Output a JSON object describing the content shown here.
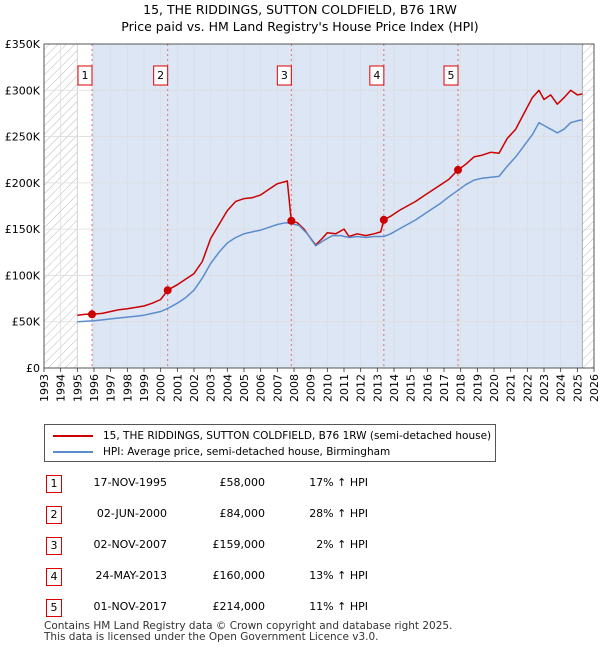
{
  "header": {
    "title_line1": "15, THE RIDDINGS, SUTTON COLDFIELD, B76 1RW",
    "title_line2": "Price paid vs. HM Land Registry's House Price Index (HPI)"
  },
  "colors": {
    "property": "#cc0000",
    "hpi": "#5b8ccc",
    "shade": "#dce6f5",
    "hatch": "#bbbbbb",
    "grid": "#dddddd",
    "vline": "#e07070"
  },
  "chart_data": {
    "type": "line",
    "title": "15, THE RIDDINGS, SUTTON COLDFIELD, B76 1RW",
    "subtitle": "Price paid vs. HM Land Registry's House Price Index (HPI)",
    "xlabel": "",
    "ylabel": "",
    "xlim": [
      1993,
      2026
    ],
    "ylim": [
      0,
      350000
    ],
    "x_ticks": [
      "1993",
      "1994",
      "1995",
      "1996",
      "1997",
      "1998",
      "1999",
      "2000",
      "2001",
      "2002",
      "2003",
      "2004",
      "2005",
      "2006",
      "2007",
      "2008",
      "2009",
      "2010",
      "2011",
      "2012",
      "2013",
      "2014",
      "2015",
      "2016",
      "2017",
      "2018",
      "2019",
      "2020",
      "2021",
      "2022",
      "2023",
      "2024",
      "2025",
      "2026"
    ],
    "y_ticks": [
      {
        "value": 0,
        "label": "£0"
      },
      {
        "value": 50000,
        "label": "£50K"
      },
      {
        "value": 100000,
        "label": "£100K"
      },
      {
        "value": 150000,
        "label": "£150K"
      },
      {
        "value": 200000,
        "label": "£200K"
      },
      {
        "value": 250000,
        "label": "£250K"
      },
      {
        "value": 300000,
        "label": "£300K"
      },
      {
        "value": 350000,
        "label": "£350K"
      }
    ],
    "data_range": [
      1995.0,
      2025.3
    ],
    "shaded_from": 1995.88,
    "series": [
      {
        "name": "15, THE RIDDINGS, SUTTON COLDFIELD, B76 1RW (semi-detached house)",
        "key": "property",
        "points": [
          [
            1995.0,
            57000
          ],
          [
            1995.5,
            58000
          ],
          [
            1995.88,
            58000
          ],
          [
            1996.5,
            59000
          ],
          [
            1997.0,
            61000
          ],
          [
            1997.5,
            63000
          ],
          [
            1998.0,
            64000
          ],
          [
            1998.5,
            65500
          ],
          [
            1999.0,
            67000
          ],
          [
            1999.5,
            70000
          ],
          [
            2000.0,
            74000
          ],
          [
            2000.42,
            84000
          ],
          [
            2001.0,
            90000
          ],
          [
            2001.5,
            96000
          ],
          [
            2002.0,
            102000
          ],
          [
            2002.5,
            115000
          ],
          [
            2003.0,
            140000
          ],
          [
            2003.5,
            155000
          ],
          [
            2004.0,
            170000
          ],
          [
            2004.5,
            180000
          ],
          [
            2005.0,
            183000
          ],
          [
            2005.5,
            184000
          ],
          [
            2006.0,
            187000
          ],
          [
            2006.5,
            193000
          ],
          [
            2007.0,
            199000
          ],
          [
            2007.6,
            202000
          ],
          [
            2007.84,
            159000
          ],
          [
            2008.2,
            157000
          ],
          [
            2008.6,
            150000
          ],
          [
            2009.0,
            140000
          ],
          [
            2009.3,
            133000
          ],
          [
            2009.7,
            140000
          ],
          [
            2010.0,
            146000
          ],
          [
            2010.5,
            145000
          ],
          [
            2011.0,
            150000
          ],
          [
            2011.3,
            142000
          ],
          [
            2011.8,
            145000
          ],
          [
            2012.3,
            143000
          ],
          [
            2012.8,
            145000
          ],
          [
            2013.2,
            147000
          ],
          [
            2013.39,
            160000
          ],
          [
            2013.8,
            164000
          ],
          [
            2014.3,
            170000
          ],
          [
            2014.8,
            175000
          ],
          [
            2015.3,
            180000
          ],
          [
            2015.8,
            186000
          ],
          [
            2016.3,
            192000
          ],
          [
            2016.8,
            198000
          ],
          [
            2017.3,
            204000
          ],
          [
            2017.84,
            214000
          ],
          [
            2018.3,
            220000
          ],
          [
            2018.8,
            228000
          ],
          [
            2019.3,
            230000
          ],
          [
            2019.8,
            233000
          ],
          [
            2020.3,
            232000
          ],
          [
            2020.8,
            248000
          ],
          [
            2021.3,
            258000
          ],
          [
            2021.8,
            275000
          ],
          [
            2022.3,
            292000
          ],
          [
            2022.7,
            300000
          ],
          [
            2023.0,
            290000
          ],
          [
            2023.4,
            295000
          ],
          [
            2023.8,
            285000
          ],
          [
            2024.2,
            292000
          ],
          [
            2024.6,
            300000
          ],
          [
            2025.0,
            295000
          ],
          [
            2025.3,
            296000
          ]
        ]
      },
      {
        "name": "HPI: Average price, semi-detached house, Birmingham",
        "key": "hpi",
        "points": [
          [
            1995.0,
            50000
          ],
          [
            1995.5,
            50500
          ],
          [
            1996.0,
            51000
          ],
          [
            1996.5,
            52000
          ],
          [
            1997.0,
            53000
          ],
          [
            1997.5,
            54000
          ],
          [
            1998.0,
            55000
          ],
          [
            1998.5,
            56000
          ],
          [
            1999.0,
            57000
          ],
          [
            1999.5,
            59000
          ],
          [
            2000.0,
            61000
          ],
          [
            2000.5,
            65000
          ],
          [
            2001.0,
            70000
          ],
          [
            2001.5,
            76000
          ],
          [
            2002.0,
            84000
          ],
          [
            2002.5,
            97000
          ],
          [
            2003.0,
            113000
          ],
          [
            2003.5,
            125000
          ],
          [
            2004.0,
            135000
          ],
          [
            2004.5,
            141000
          ],
          [
            2005.0,
            145000
          ],
          [
            2005.5,
            147000
          ],
          [
            2006.0,
            149000
          ],
          [
            2006.5,
            152000
          ],
          [
            2007.0,
            155000
          ],
          [
            2007.5,
            157000
          ],
          [
            2007.84,
            156000
          ],
          [
            2008.3,
            154000
          ],
          [
            2008.8,
            145000
          ],
          [
            2009.3,
            132000
          ],
          [
            2009.8,
            138000
          ],
          [
            2010.3,
            143000
          ],
          [
            2010.8,
            143000
          ],
          [
            2011.3,
            141000
          ],
          [
            2011.8,
            142000
          ],
          [
            2012.3,
            141000
          ],
          [
            2012.8,
            142000
          ],
          [
            2013.39,
            142000
          ],
          [
            2013.8,
            145000
          ],
          [
            2014.3,
            150000
          ],
          [
            2014.8,
            155000
          ],
          [
            2015.3,
            160000
          ],
          [
            2015.8,
            166000
          ],
          [
            2016.3,
            172000
          ],
          [
            2016.8,
            178000
          ],
          [
            2017.3,
            185000
          ],
          [
            2017.84,
            192000
          ],
          [
            2018.3,
            198000
          ],
          [
            2018.8,
            203000
          ],
          [
            2019.3,
            205000
          ],
          [
            2019.8,
            206000
          ],
          [
            2020.3,
            207000
          ],
          [
            2020.8,
            218000
          ],
          [
            2021.3,
            228000
          ],
          [
            2021.8,
            240000
          ],
          [
            2022.3,
            252000
          ],
          [
            2022.7,
            265000
          ],
          [
            2023.0,
            262000
          ],
          [
            2023.4,
            258000
          ],
          [
            2023.8,
            254000
          ],
          [
            2024.2,
            258000
          ],
          [
            2024.6,
            265000
          ],
          [
            2025.0,
            267000
          ],
          [
            2025.3,
            268000
          ]
        ]
      }
    ],
    "sales": [
      {
        "num": "1",
        "x": 1995.88,
        "price": 58000
      },
      {
        "num": "2",
        "x": 2000.42,
        "price": 84000
      },
      {
        "num": "3",
        "x": 2007.84,
        "price": 159000
      },
      {
        "num": "4",
        "x": 2013.39,
        "price": 160000
      },
      {
        "num": "5",
        "x": 2017.84,
        "price": 214000
      }
    ]
  },
  "legend": {
    "property_label": "15, THE RIDDINGS, SUTTON COLDFIELD, B76 1RW (semi-detached house)",
    "hpi_label": "HPI: Average price, semi-detached house, Birmingham"
  },
  "sales_table": [
    {
      "num": "1",
      "date": "17-NOV-1995",
      "price": "£58,000",
      "hpi": "17% ↑ HPI"
    },
    {
      "num": "2",
      "date": "02-JUN-2000",
      "price": "£84,000",
      "hpi": "28% ↑ HPI"
    },
    {
      "num": "3",
      "date": "02-NOV-2007",
      "price": "£159,000",
      "hpi": "2% ↑ HPI"
    },
    {
      "num": "4",
      "date": "24-MAY-2013",
      "price": "£160,000",
      "hpi": "13% ↑ HPI"
    },
    {
      "num": "5",
      "date": "01-NOV-2017",
      "price": "£214,000",
      "hpi": "11% ↑ HPI"
    }
  ],
  "footer": {
    "line1": "Contains HM Land Registry data © Crown copyright and database right 2025.",
    "line2": "This data is licensed under the Open Government Licence v3.0."
  }
}
